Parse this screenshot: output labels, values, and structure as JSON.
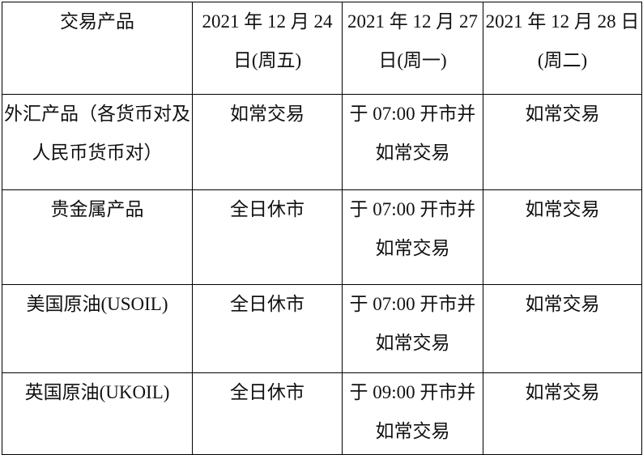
{
  "table": {
    "header": [
      "交易产品",
      "2021 年 12 月 24 日(周五)",
      "2021 年 12 月 27 日(周一)",
      "2021 年 12 月 28 日(周二)"
    ],
    "rows": [
      [
        "外汇产品（各货币对及人民币货币对）",
        "如常交易",
        "于 07:00 开市并如常交易",
        "如常交易"
      ],
      [
        "贵金属产品",
        "全日休市",
        "于 07:00 开市并如常交易",
        "如常交易"
      ],
      [
        "美国原油(USOIL)",
        "全日休市",
        "于 07:00 开市并如常交易",
        "如常交易"
      ],
      [
        "英国原油(UKOIL)",
        "全日休市",
        "于 09:00 开市并如常交易",
        "如常交易"
      ]
    ]
  }
}
